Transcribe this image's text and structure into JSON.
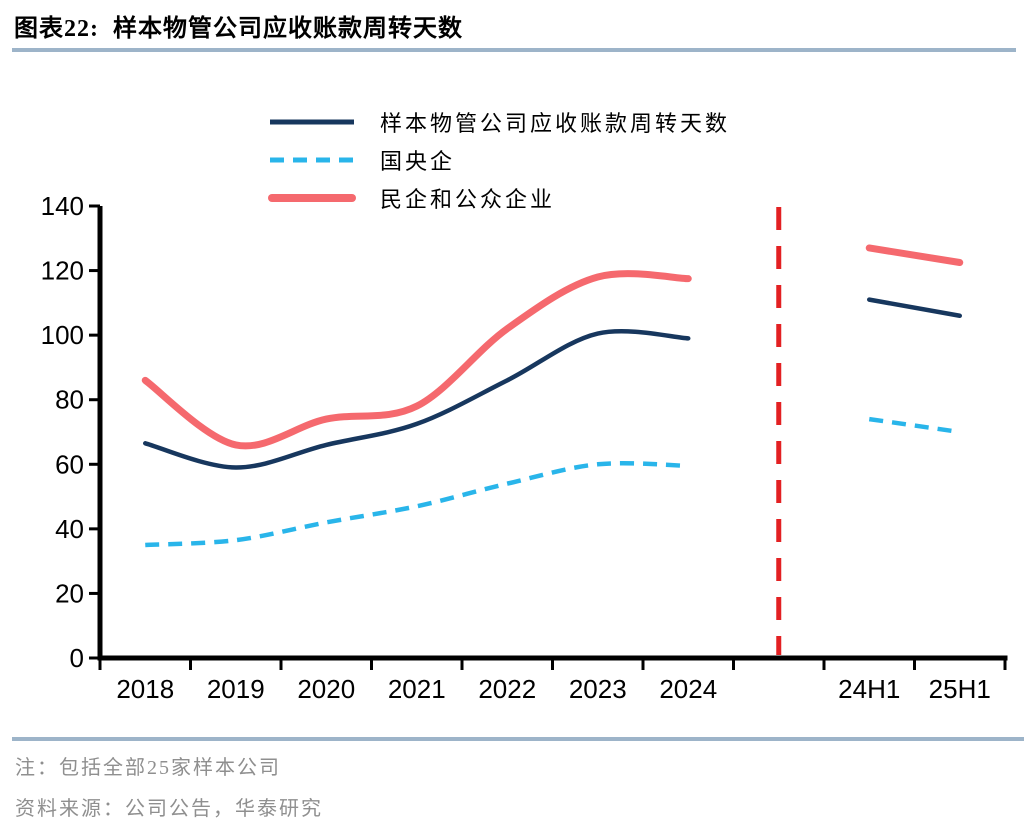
{
  "title": "图表22:  样本物管公司应收账款周转天数",
  "notes": {
    "note": "注：包括全部25家样本公司",
    "source": "资料来源：公司公告，华泰研究"
  },
  "colors": {
    "navy": "#17375e",
    "light_blue": "#29b5ea",
    "coral_red": "#f5696e",
    "divider_red": "#e32022",
    "rule_blue_gray": "#9db4c9",
    "note_gray": "#8f8f8f",
    "axis_black": "#000000"
  },
  "chart_data": {
    "type": "line",
    "title": "样本物管公司应收账款周转天数",
    "categories": [
      "2018",
      "2019",
      "2020",
      "2021",
      "2022",
      "2023",
      "2024",
      "",
      "24H1",
      "25H1"
    ],
    "gap_index": 7,
    "series": [
      {
        "id": "all-sample",
        "name": "样本物管公司应收账款周转天数",
        "color": "#17375e",
        "style": "solid",
        "width": 4.5,
        "annual": [
          66.5,
          59,
          66,
          72.5,
          86,
          100.5,
          99
        ],
        "half_year": [
          111,
          106
        ]
      },
      {
        "id": "soe",
        "name": "国央企",
        "color": "#29b5ea",
        "style": "dashed",
        "width": 4.5,
        "annual": [
          35,
          36.5,
          42,
          47,
          54,
          60,
          59.5
        ],
        "half_year": [
          74,
          70
        ]
      },
      {
        "id": "private-public",
        "name": "民企和公众企业",
        "color": "#f5696e",
        "style": "solid",
        "width": 7,
        "annual": [
          86,
          66,
          74,
          78,
          102,
          118,
          117.5
        ],
        "half_year": [
          127,
          122.5
        ]
      }
    ],
    "divider": {
      "color": "#e32022",
      "at_category_index": 7
    },
    "yticks": [
      0,
      20,
      40,
      60,
      80,
      100,
      120,
      140
    ],
    "ylim": [
      0,
      140
    ],
    "xlabel": "",
    "ylabel": "",
    "grid": false,
    "legend_position": "top"
  }
}
